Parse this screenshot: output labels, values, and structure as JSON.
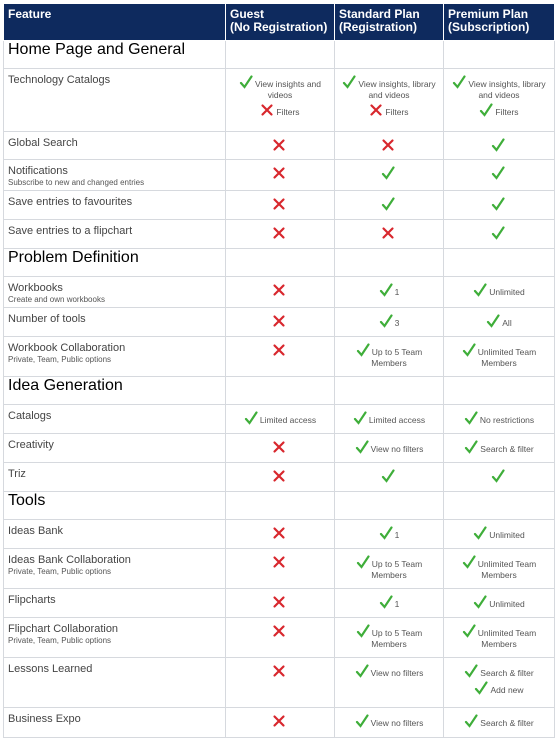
{
  "header": {
    "columns": [
      {
        "title": "Feature"
      },
      {
        "title": "Guest",
        "subtitle": "(No Registration)"
      },
      {
        "title": "Standard Plan",
        "subtitle": "(Registration)"
      },
      {
        "title": "Premium Plan",
        "subtitle": "(Subscription)"
      }
    ]
  },
  "table": {
    "sections": [
      {
        "title": "Home Page and General",
        "rows": [
          {
            "feature": "Technology Catalogs",
            "cells": [
              [
                {
                  "icon": "check",
                  "text": "View insights and videos"
                },
                {
                  "icon": "cross",
                  "text": "Filters"
                }
              ],
              [
                {
                  "icon": "check",
                  "text": "View insights, library and videos"
                },
                {
                  "icon": "cross",
                  "text": "Filters"
                }
              ],
              [
                {
                  "icon": "check",
                  "text": "View insights, library and videos"
                },
                {
                  "icon": "check",
                  "text": "Filters"
                }
              ]
            ]
          },
          {
            "feature": "Global Search",
            "cells": [
              [
                {
                  "icon": "cross"
                }
              ],
              [
                {
                  "icon": "cross"
                }
              ],
              [
                {
                  "icon": "check"
                }
              ]
            ]
          },
          {
            "feature": "Notifications",
            "note": "Subscribe to new and changed entries",
            "cells": [
              [
                {
                  "icon": "cross"
                }
              ],
              [
                {
                  "icon": "check"
                }
              ],
              [
                {
                  "icon": "check"
                }
              ]
            ]
          },
          {
            "feature": "Save entries to favourites",
            "cells": [
              [
                {
                  "icon": "cross"
                }
              ],
              [
                {
                  "icon": "check"
                }
              ],
              [
                {
                  "icon": "check"
                }
              ]
            ]
          },
          {
            "feature": "Save entries to a flipchart",
            "cells": [
              [
                {
                  "icon": "cross"
                }
              ],
              [
                {
                  "icon": "cross"
                }
              ],
              [
                {
                  "icon": "check"
                }
              ]
            ]
          }
        ]
      },
      {
        "title": "Problem Definition",
        "rows": [
          {
            "feature": "Workbooks",
            "note": "Create and own workbooks",
            "cells": [
              [
                {
                  "icon": "cross"
                }
              ],
              [
                {
                  "icon": "check",
                  "text": "1"
                }
              ],
              [
                {
                  "icon": "check",
                  "text": "Unlimited"
                }
              ]
            ]
          },
          {
            "feature": "Number of tools",
            "cells": [
              [
                {
                  "icon": "cross"
                }
              ],
              [
                {
                  "icon": "check",
                  "text": "3"
                }
              ],
              [
                {
                  "icon": "check",
                  "text": "All"
                }
              ]
            ]
          },
          {
            "feature": "Workbook Collaboration",
            "note": "Private, Team, Public options",
            "cells": [
              [
                {
                  "icon": "cross"
                }
              ],
              [
                {
                  "icon": "check",
                  "text": "Up to 5 Team Members"
                }
              ],
              [
                {
                  "icon": "check",
                  "text": "Unlimited Team Members"
                }
              ]
            ]
          }
        ]
      },
      {
        "title": "Idea Generation",
        "rows": [
          {
            "feature": "Catalogs",
            "cells": [
              [
                {
                  "icon": "check",
                  "text": "Limited access"
                }
              ],
              [
                {
                  "icon": "check",
                  "text": "Limited access"
                }
              ],
              [
                {
                  "icon": "check",
                  "text": "No restrictions"
                }
              ]
            ]
          },
          {
            "feature": "Creativity",
            "cells": [
              [
                {
                  "icon": "cross"
                }
              ],
              [
                {
                  "icon": "check",
                  "text": "View no filters"
                }
              ],
              [
                {
                  "icon": "check",
                  "text": "Search & filter"
                }
              ]
            ]
          },
          {
            "feature": "Triz",
            "cells": [
              [
                {
                  "icon": "cross"
                }
              ],
              [
                {
                  "icon": "check"
                }
              ],
              [
                {
                  "icon": "check"
                }
              ]
            ]
          }
        ]
      },
      {
        "title": "Tools",
        "rows": [
          {
            "feature": "Ideas Bank",
            "cells": [
              [
                {
                  "icon": "cross"
                }
              ],
              [
                {
                  "icon": "check",
                  "text": "1"
                }
              ],
              [
                {
                  "icon": "check",
                  "text": "Unlimited"
                }
              ]
            ]
          },
          {
            "feature": "Ideas Bank Collaboration",
            "note": "Private, Team, Public options",
            "cells": [
              [
                {
                  "icon": "cross"
                }
              ],
              [
                {
                  "icon": "check",
                  "text": "Up to 5 Team Members"
                }
              ],
              [
                {
                  "icon": "check",
                  "text": "Unlimited Team Members"
                }
              ]
            ]
          },
          {
            "feature": "Flipcharts",
            "cells": [
              [
                {
                  "icon": "cross"
                }
              ],
              [
                {
                  "icon": "check",
                  "text": "1"
                }
              ],
              [
                {
                  "icon": "check",
                  "text": "Unlimited"
                }
              ]
            ]
          },
          {
            "feature": "Flipchart Collaboration",
            "note": "Private, Team, Public options",
            "cells": [
              [
                {
                  "icon": "cross"
                }
              ],
              [
                {
                  "icon": "check",
                  "text": "Up to 5 Team Members"
                }
              ],
              [
                {
                  "icon": "check",
                  "text": "Unlimited Team Members"
                }
              ]
            ]
          },
          {
            "feature": "Lessons Learned",
            "cells": [
              [
                {
                  "icon": "cross"
                }
              ],
              [
                {
                  "icon": "check",
                  "text": "View no filters"
                }
              ],
              [
                {
                  "icon": "check",
                  "text": "Search & filter"
                },
                {
                  "icon": "check",
                  "text": "Add new"
                }
              ]
            ]
          },
          {
            "feature": "Business Expo",
            "cells": [
              [
                {
                  "icon": "cross"
                }
              ],
              [
                {
                  "icon": "check",
                  "text": "View no filters"
                }
              ],
              [
                {
                  "icon": "check",
                  "text": "Search & filter"
                }
              ]
            ]
          }
        ]
      }
    ]
  }
}
